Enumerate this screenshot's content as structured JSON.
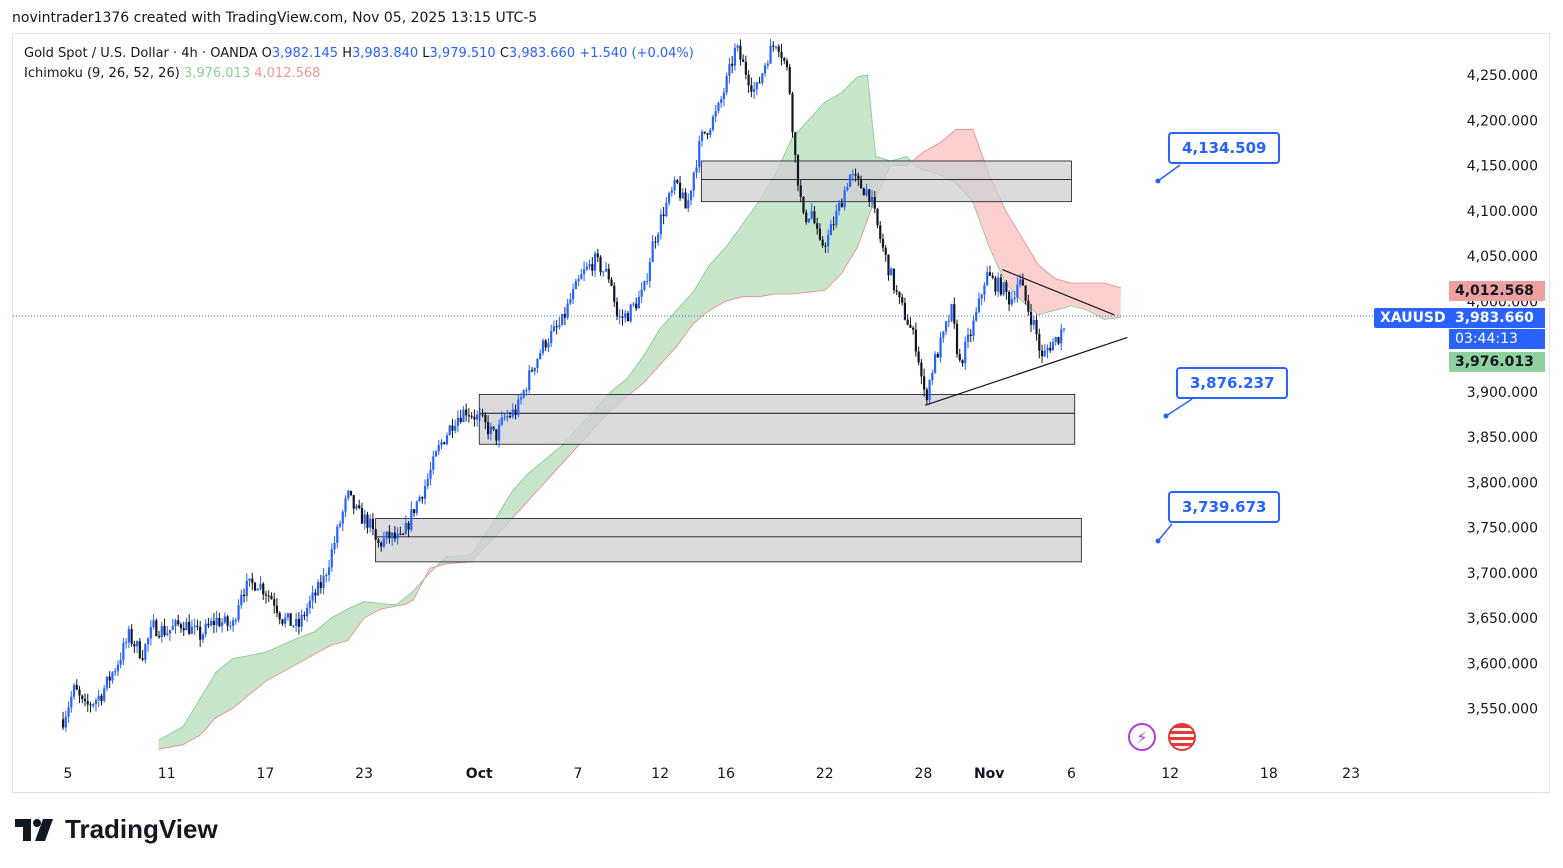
{
  "header": {
    "text": "novintrader1376 created with TradingView.com, Nov 05, 2025 13:15 UTC-5"
  },
  "legend": {
    "symbol_desc": "Gold Spot / U.S. Dollar · 4h · OANDA",
    "o_label": "O",
    "o_value": "3,982.145",
    "h_label": "H",
    "h_value": "3,983.840",
    "l_label": "L",
    "l_value": "3,979.510",
    "c_label": "C",
    "c_value": "3,983.660",
    "change": "+1.540 (+0.04%)",
    "ichimoku_label": "Ichimoku (9, 26, 52, 26)",
    "ichimoku_val_a": "3,976.013",
    "ichimoku_val_b": "4,012.568"
  },
  "callouts": {
    "upper": "4,134.509",
    "middle": "3,876.237",
    "lower": "3,739.673"
  },
  "price_labels": {
    "span_b": "4,012.568",
    "symbol": "XAUUSD",
    "last_price": "3,983.660",
    "countdown": "03:44:13",
    "span_a": "3,976.013"
  },
  "colors": {
    "up": "#2962ff",
    "down": "#131722",
    "cloud_bull": "#a5d6a7",
    "cloud_bear": "#f8a9a6",
    "zone": "#cfcfd2",
    "accent": "#2962ff"
  },
  "icons": [
    "lightning-icon",
    "us-flag-icon",
    "tradingview-logo-icon"
  ],
  "logo_text": "TradingView",
  "chart_data": {
    "type": "candlestick",
    "title": "Gold Spot / U.S. Dollar · 4h · OANDA",
    "ylim": [
      3510,
      4290
    ],
    "y_ticks": [
      "4,250.000",
      "4,200.000",
      "4,150.000",
      "4,100.000",
      "4,050.000",
      "4,000.000",
      "3,900.000",
      "3,850.000",
      "3,800.000",
      "3,750.000",
      "3,700.000",
      "3,650.000",
      "3,600.000",
      "3,550.000"
    ],
    "y_tick_values": [
      4250,
      4200,
      4150,
      4100,
      4050,
      4000,
      3900,
      3850,
      3800,
      3750,
      3700,
      3650,
      3600,
      3550
    ],
    "x_ticks": [
      {
        "label": "5",
        "day": 0
      },
      {
        "label": "11",
        "day": 6
      },
      {
        "label": "17",
        "day": 12
      },
      {
        "label": "23",
        "day": 18
      },
      {
        "label": "Oct",
        "day": 25
      },
      {
        "label": "7",
        "day": 31
      },
      {
        "label": "12",
        "day": 36
      },
      {
        "label": "16",
        "day": 40
      },
      {
        "label": "22",
        "day": 46
      },
      {
        "label": "28",
        "day": 52
      },
      {
        "label": "Nov",
        "day": 56
      },
      {
        "label": "6",
        "day": 61
      },
      {
        "label": "12",
        "day": 67
      },
      {
        "label": "18",
        "day": 73
      },
      {
        "label": "23",
        "day": 78
      }
    ],
    "close_path": [
      [
        -0.3,
        3538
      ],
      [
        0.4,
        3572
      ],
      [
        1.0,
        3550
      ],
      [
        2.0,
        3565
      ],
      [
        3.0,
        3600
      ],
      [
        3.7,
        3630
      ],
      [
        4.5,
        3610
      ],
      [
        5.2,
        3640
      ],
      [
        6.0,
        3635
      ],
      [
        7.0,
        3645
      ],
      [
        8.0,
        3630
      ],
      [
        9.0,
        3648
      ],
      [
        10.0,
        3640
      ],
      [
        10.5,
        3680
      ],
      [
        11.5,
        3690
      ],
      [
        12.5,
        3670
      ],
      [
        13.0,
        3650
      ],
      [
        14.0,
        3640
      ],
      [
        14.5,
        3660
      ],
      [
        15.5,
        3690
      ],
      [
        16.3,
        3740
      ],
      [
        17.0,
        3785
      ],
      [
        17.6,
        3765
      ],
      [
        18.3,
        3755
      ],
      [
        18.8,
        3730
      ],
      [
        19.5,
        3740
      ],
      [
        20.3,
        3735
      ],
      [
        21.0,
        3770
      ],
      [
        21.8,
        3800
      ],
      [
        22.6,
        3840
      ],
      [
        23.5,
        3870
      ],
      [
        24.2,
        3880
      ],
      [
        25.0,
        3870
      ],
      [
        26.0,
        3850
      ],
      [
        26.5,
        3870
      ],
      [
        27.3,
        3880
      ],
      [
        28.3,
        3930
      ],
      [
        29.0,
        3955
      ],
      [
        30.0,
        3975
      ],
      [
        30.5,
        4000
      ],
      [
        31.3,
        4030
      ],
      [
        32.0,
        4045
      ],
      [
        33.0,
        4025
      ],
      [
        33.4,
        3980
      ],
      [
        34.0,
        3985
      ],
      [
        35.0,
        4010
      ],
      [
        35.5,
        4060
      ],
      [
        36.2,
        4100
      ],
      [
        37.0,
        4130
      ],
      [
        37.6,
        4100
      ],
      [
        38.0,
        4140
      ],
      [
        38.5,
        4180
      ],
      [
        39.5,
        4210
      ],
      [
        40.0,
        4240
      ],
      [
        40.6,
        4280
      ],
      [
        41.3,
        4250
      ],
      [
        41.8,
        4230
      ],
      [
        42.5,
        4270
      ],
      [
        43.1,
        4290
      ],
      [
        43.8,
        4250
      ],
      [
        44.2,
        4160
      ],
      [
        44.7,
        4090
      ],
      [
        45.2,
        4100
      ],
      [
        45.7,
        4060
      ],
      [
        46.2,
        4070
      ],
      [
        47.0,
        4110
      ],
      [
        47.5,
        4140
      ],
      [
        48.0,
        4130
      ],
      [
        48.7,
        4120
      ],
      [
        49.5,
        4060
      ],
      [
        50.0,
        4030
      ],
      [
        50.5,
        4000
      ],
      [
        51.0,
        3980
      ],
      [
        51.6,
        3950
      ],
      [
        52.1,
        3890
      ],
      [
        52.6,
        3930
      ],
      [
        53.2,
        3960
      ],
      [
        53.7,
        3990
      ],
      [
        54.2,
        3930
      ],
      [
        54.8,
        3960
      ],
      [
        55.3,
        3990
      ],
      [
        55.8,
        4030
      ],
      [
        56.3,
        4020
      ],
      [
        56.8,
        4015
      ],
      [
        57.3,
        4000
      ],
      [
        57.8,
        4025
      ],
      [
        58.3,
        3995
      ],
      [
        58.8,
        3970
      ],
      [
        59.2,
        3935
      ],
      [
        59.6,
        3950
      ],
      [
        60.2,
        3960
      ],
      [
        60.7,
        3982
      ]
    ],
    "ichimoku": {
      "span_a": [
        [
          5.5,
          3515
        ],
        [
          7.0,
          3530
        ],
        [
          8.0,
          3560
        ],
        [
          9.0,
          3590
        ],
        [
          10.0,
          3605
        ],
        [
          12.0,
          3612
        ],
        [
          14.0,
          3628
        ],
        [
          15.0,
          3635
        ],
        [
          16.0,
          3650
        ],
        [
          17.0,
          3660
        ],
        [
          18.0,
          3668
        ],
        [
          19.5,
          3665
        ],
        [
          20.0,
          3665
        ],
        [
          21.0,
          3680
        ],
        [
          22.0,
          3700
        ],
        [
          23.0,
          3718
        ],
        [
          24.5,
          3720
        ],
        [
          26.0,
          3760
        ],
        [
          27.0,
          3790
        ],
        [
          28.0,
          3810
        ],
        [
          29.0,
          3825
        ],
        [
          30.0,
          3840
        ],
        [
          31.0,
          3860
        ],
        [
          32.0,
          3880
        ],
        [
          33.0,
          3900
        ],
        [
          34.0,
          3915
        ],
        [
          35.0,
          3940
        ],
        [
          36.0,
          3970
        ],
        [
          37.0,
          3990
        ],
        [
          38.0,
          4010
        ],
        [
          39.0,
          4040
        ],
        [
          40.0,
          4060
        ],
        [
          41.0,
          4085
        ],
        [
          42.0,
          4110
        ],
        [
          43.0,
          4140
        ],
        [
          44.0,
          4180
        ],
        [
          45.0,
          4200
        ],
        [
          46.0,
          4220
        ],
        [
          47.0,
          4230
        ],
        [
          48.0,
          4248
        ],
        [
          48.6,
          4250
        ],
        [
          49.1,
          4160
        ],
        [
          50.0,
          4155
        ],
        [
          51.0,
          4160
        ],
        [
          51.5,
          4150
        ],
        [
          52.0,
          4145
        ],
        [
          53.0,
          4140
        ],
        [
          54.0,
          4130
        ],
        [
          55.0,
          4110
        ],
        [
          56.0,
          4060
        ],
        [
          57.0,
          4020
        ],
        [
          58.0,
          4000
        ],
        [
          59.0,
          3985
        ],
        [
          60.0,
          3990
        ],
        [
          61.0,
          3995
        ],
        [
          62.0,
          3990
        ],
        [
          63.0,
          3980
        ],
        [
          64.0,
          3982
        ]
      ],
      "span_b": [
        [
          5.5,
          3505
        ],
        [
          7.0,
          3510
        ],
        [
          8.0,
          3520
        ],
        [
          9.0,
          3540
        ],
        [
          10.0,
          3550
        ],
        [
          11.0,
          3565
        ],
        [
          12.0,
          3580
        ],
        [
          13.0,
          3590
        ],
        [
          14.0,
          3600
        ],
        [
          15.0,
          3610
        ],
        [
          16.0,
          3620
        ],
        [
          17.0,
          3625
        ],
        [
          18.0,
          3650
        ],
        [
          19.0,
          3660
        ],
        [
          20.5,
          3665
        ],
        [
          21.0,
          3670
        ],
        [
          22.0,
          3705
        ],
        [
          23.0,
          3710
        ],
        [
          24.5,
          3712
        ],
        [
          26.0,
          3740
        ],
        [
          27.0,
          3760
        ],
        [
          28.0,
          3780
        ],
        [
          29.0,
          3800
        ],
        [
          30.0,
          3820
        ],
        [
          31.0,
          3840
        ],
        [
          32.0,
          3860
        ],
        [
          33.0,
          3880
        ],
        [
          34.0,
          3895
        ],
        [
          35.0,
          3910
        ],
        [
          36.0,
          3930
        ],
        [
          37.0,
          3950
        ],
        [
          38.0,
          3975
        ],
        [
          39.0,
          3990
        ],
        [
          40.0,
          4000
        ],
        [
          41.0,
          4005
        ],
        [
          42.0,
          4005
        ],
        [
          43.0,
          4008
        ],
        [
          44.0,
          4008
        ],
        [
          45.0,
          4010
        ],
        [
          46.0,
          4012
        ],
        [
          47.0,
          4030
        ],
        [
          48.0,
          4060
        ],
        [
          49.0,
          4110
        ],
        [
          50.0,
          4150
        ],
        [
          51.0,
          4150
        ],
        [
          52.0,
          4165
        ],
        [
          53.0,
          4175
        ],
        [
          54.0,
          4190
        ],
        [
          55.0,
          4190
        ],
        [
          56.0,
          4140
        ],
        [
          57.0,
          4100
        ],
        [
          58.0,
          4070
        ],
        [
          59.0,
          4040
        ],
        [
          60.0,
          4025
        ],
        [
          61.0,
          4020
        ],
        [
          62.0,
          4020
        ],
        [
          63.0,
          4020
        ],
        [
          64.0,
          4015
        ]
      ]
    },
    "zones": [
      {
        "name": "zone-upper",
        "day_start": 38.5,
        "day_end": 61.0,
        "low": 4110,
        "mid": 4134.509,
        "high": 4155
      },
      {
        "name": "zone-middle",
        "day_start": 25.0,
        "day_end": 61.2,
        "low": 3842,
        "mid": 3876.237,
        "high": 3897
      },
      {
        "name": "zone-lower",
        "day_start": 18.7,
        "day_end": 61.6,
        "low": 3712,
        "mid": 3739.673,
        "high": 3760
      }
    ],
    "trendlines": [
      {
        "name": "triangle-upper-line",
        "from": [
          56.8,
          4035
        ],
        "to": [
          63.6,
          3985
        ]
      },
      {
        "name": "triangle-lower-line",
        "from": [
          52.1,
          3885
        ],
        "to": [
          64.4,
          3960
        ]
      }
    ],
    "last_price_line": 3983.66
  }
}
